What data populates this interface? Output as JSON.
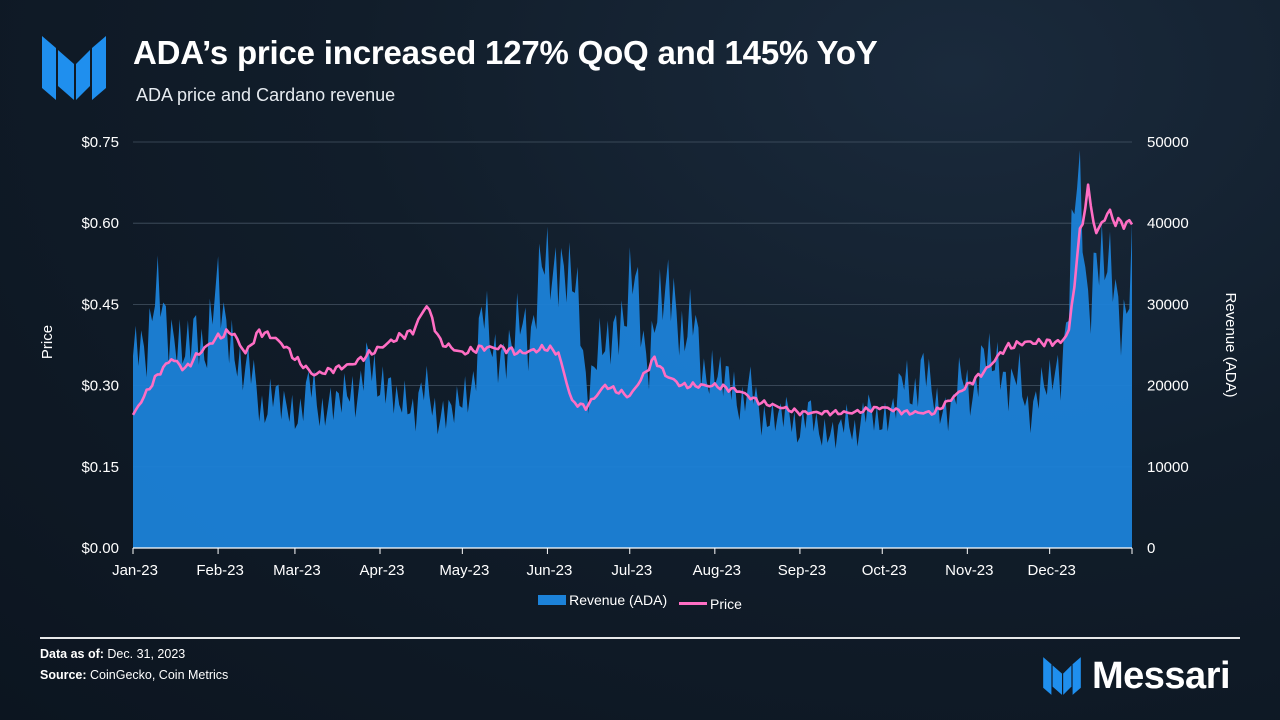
{
  "header": {
    "title": "ADA’s price increased 127% QoQ and 145% YoY",
    "subtitle": "ADA price and Cardano revenue"
  },
  "footer": {
    "data_as_of_label": "Data as of:",
    "data_as_of_value": "Dec. 31, 2023",
    "source_label": "Source:",
    "source_value": "CoinGecko, Coin Metrics",
    "brand": "Messari"
  },
  "colors": {
    "revenue": "#1c82d8",
    "price": "#ff6ec4",
    "logo": "#1f8fee"
  },
  "chart_data": {
    "type": "area+line",
    "title": "ADA price and Cardano revenue",
    "x_ticks": [
      "Jan-23",
      "Feb-23",
      "Mar-23",
      "Apr-23",
      "May-23",
      "Jun-23",
      "Jul-23",
      "Aug-23",
      "Sep-23",
      "Oct-23",
      "Nov-23",
      "Dec-23"
    ],
    "ylabel_left": "Price",
    "ylabel_right": "Revenue (ADA)",
    "ylim_left": [
      0,
      0.75
    ],
    "ylim_right": [
      0,
      50000
    ],
    "yticks_left": [
      "$0.00",
      "$0.15",
      "$0.30",
      "$0.45",
      "$0.60",
      "$0.75"
    ],
    "yticks_right": [
      "0",
      "10000",
      "20000",
      "30000",
      "40000",
      "50000"
    ],
    "grid": true,
    "legend": [
      "Revenue (ADA)",
      "Price"
    ],
    "series": [
      {
        "name": "Revenue (ADA)",
        "axis": "right",
        "kind": "area",
        "x": [
          "Jan-01",
          "Jan-08",
          "Jan-15",
          "Jan-22",
          "Feb-01",
          "Feb-08",
          "Feb-15",
          "Feb-22",
          "Mar-01",
          "Mar-08",
          "Mar-15",
          "Mar-22",
          "Apr-01",
          "Apr-08",
          "Apr-15",
          "Apr-22",
          "May-01",
          "May-08",
          "May-15",
          "May-22",
          "Jun-01",
          "Jun-08",
          "Jun-15",
          "Jun-22",
          "Jul-01",
          "Jul-08",
          "Jul-15",
          "Jul-22",
          "Aug-01",
          "Aug-08",
          "Aug-15",
          "Aug-22",
          "Sep-01",
          "Sep-08",
          "Sep-15",
          "Sep-22",
          "Oct-01",
          "Oct-08",
          "Oct-15",
          "Oct-22",
          "Nov-01",
          "Nov-08",
          "Nov-15",
          "Nov-22",
          "Dec-01",
          "Dec-05",
          "Dec-08",
          "Dec-12",
          "Dec-15",
          "Dec-18",
          "Dec-22",
          "Dec-26",
          "Dec-31"
        ],
        "values": [
          22000,
          30000,
          27000,
          24000,
          30000,
          24000,
          19000,
          18000,
          17000,
          19000,
          17000,
          20000,
          22000,
          17000,
          19000,
          17000,
          17000,
          27000,
          24000,
          26000,
          34000,
          36000,
          22000,
          24000,
          32000,
          25000,
          32000,
          27000,
          21000,
          20000,
          18000,
          16000,
          16000,
          15000,
          14000,
          16000,
          16000,
          19000,
          22000,
          17000,
          20000,
          23000,
          22000,
          18000,
          20000,
          22000,
          34000,
          44000,
          32000,
          36000,
          34000,
          30000,
          33000
        ]
      },
      {
        "name": "Price",
        "axis": "left",
        "kind": "line",
        "x": [
          "Jan-01",
          "Jan-05",
          "Jan-10",
          "Jan-15",
          "Jan-20",
          "Jan-25",
          "Feb-01",
          "Feb-06",
          "Feb-11",
          "Feb-16",
          "Feb-21",
          "Feb-26",
          "Mar-01",
          "Mar-08",
          "Mar-15",
          "Mar-22",
          "Apr-01",
          "Apr-08",
          "Apr-13",
          "Apr-18",
          "Apr-23",
          "May-01",
          "May-08",
          "May-15",
          "May-22",
          "Jun-01",
          "Jun-05",
          "Jun-10",
          "Jun-15",
          "Jun-22",
          "Jul-01",
          "Jul-10",
          "Jul-14",
          "Jul-20",
          "Aug-01",
          "Aug-10",
          "Aug-17",
          "Aug-25",
          "Sep-01",
          "Sep-10",
          "Sep-20",
          "Oct-01",
          "Oct-10",
          "Oct-20",
          "Nov-01",
          "Nov-08",
          "Nov-15",
          "Nov-22",
          "Dec-01",
          "Dec-05",
          "Dec-08",
          "Dec-12",
          "Dec-15",
          "Dec-18",
          "Dec-22",
          "Dec-26",
          "Dec-31"
        ],
        "values": [
          0.245,
          0.28,
          0.32,
          0.35,
          0.33,
          0.36,
          0.39,
          0.4,
          0.36,
          0.4,
          0.39,
          0.37,
          0.35,
          0.32,
          0.33,
          0.34,
          0.37,
          0.39,
          0.4,
          0.45,
          0.38,
          0.36,
          0.37,
          0.37,
          0.36,
          0.37,
          0.36,
          0.27,
          0.26,
          0.3,
          0.28,
          0.35,
          0.32,
          0.3,
          0.3,
          0.29,
          0.27,
          0.26,
          0.25,
          0.25,
          0.25,
          0.26,
          0.25,
          0.25,
          0.3,
          0.33,
          0.37,
          0.38,
          0.38,
          0.38,
          0.4,
          0.58,
          0.66,
          0.58,
          0.62,
          0.6,
          0.6
        ]
      }
    ]
  }
}
